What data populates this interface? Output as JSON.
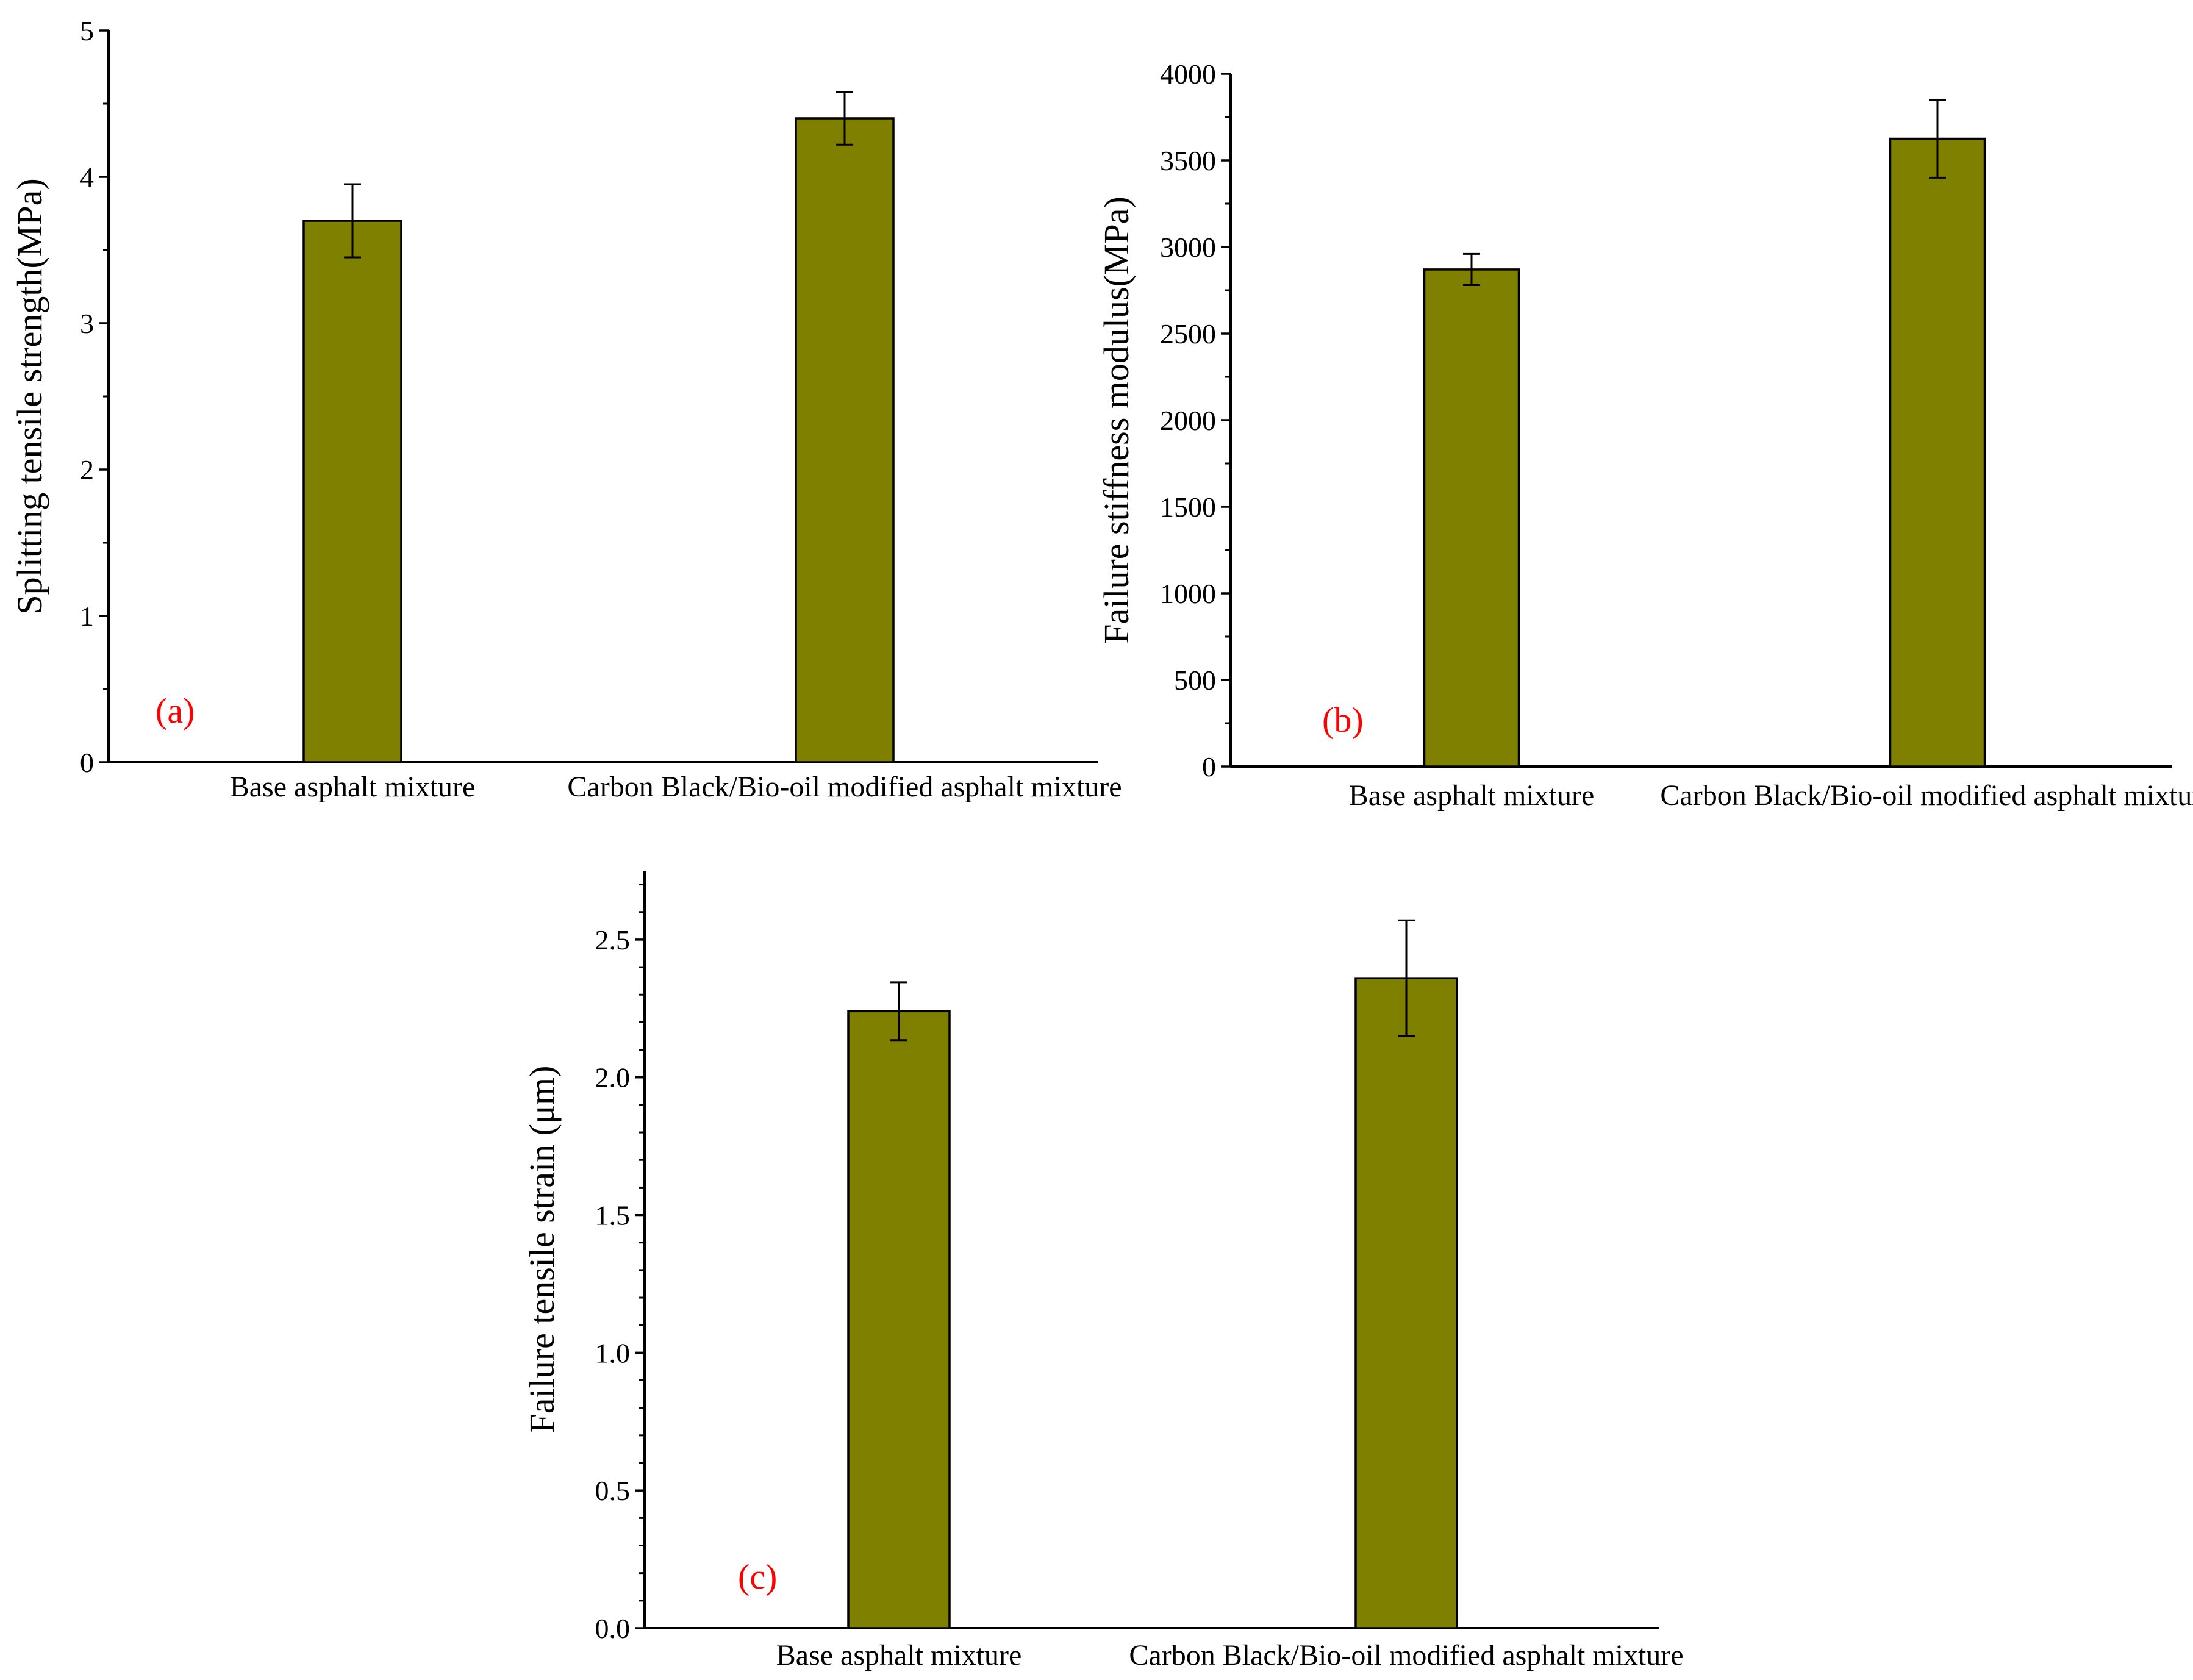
{
  "colors": {
    "bar_fill": "#808000",
    "bar_stroke": "#000000",
    "axis": "#000000",
    "panel_label": "#ff0000"
  },
  "chart_data": [
    {
      "type": "bar",
      "panel_label": "(a)",
      "title": "",
      "xlabel": "",
      "ylabel": "Splitting tensile strength(MPa)",
      "categories": [
        "Base asphalt mixture",
        "Carbon Black/Bio-oil modified asphalt mixture"
      ],
      "values": [
        3.7,
        4.4
      ],
      "errors": [
        0.25,
        0.18
      ],
      "ylim": [
        0,
        5
      ],
      "yticks": [
        0,
        1,
        2,
        3,
        4,
        5
      ],
      "ytick_labels": [
        "0",
        "1",
        "2",
        "3",
        "4",
        "5"
      ],
      "grid": false,
      "legend": "none"
    },
    {
      "type": "bar",
      "panel_label": "(b)",
      "title": "",
      "xlabel": "",
      "ylabel": "Failure stiffness modulus(MPa)",
      "categories": [
        "Base asphalt mixture",
        "Carbon Black/Bio-oil modified asphalt mixture"
      ],
      "values": [
        2870,
        3625
      ],
      "errors": [
        90,
        225
      ],
      "ylim": [
        0,
        4000
      ],
      "yticks": [
        0,
        500,
        1000,
        1500,
        2000,
        2500,
        3000,
        3500,
        4000
      ],
      "ytick_labels": [
        "0",
        "500",
        "1000",
        "1500",
        "2000",
        "2500",
        "3000",
        "3500",
        "4000"
      ],
      "grid": false,
      "legend": "none"
    },
    {
      "type": "bar",
      "panel_label": "(c)",
      "title": "",
      "xlabel": "",
      "ylabel": "Failure tensile strain (μm)",
      "categories": [
        "Base asphalt mixture",
        "Carbon Black/Bio-oil modified asphalt mixture"
      ],
      "values": [
        2.24,
        2.36
      ],
      "errors": [
        0.105,
        0.21
      ],
      "ylim": [
        0,
        2.75
      ],
      "yticks": [
        0,
        0.5,
        1.0,
        1.5,
        2.0,
        2.5
      ],
      "ytick_labels": [
        "0.0",
        "0.5",
        "1.0",
        "1.5",
        "2.0",
        "2.5"
      ],
      "grid": false,
      "legend": "none"
    }
  ]
}
